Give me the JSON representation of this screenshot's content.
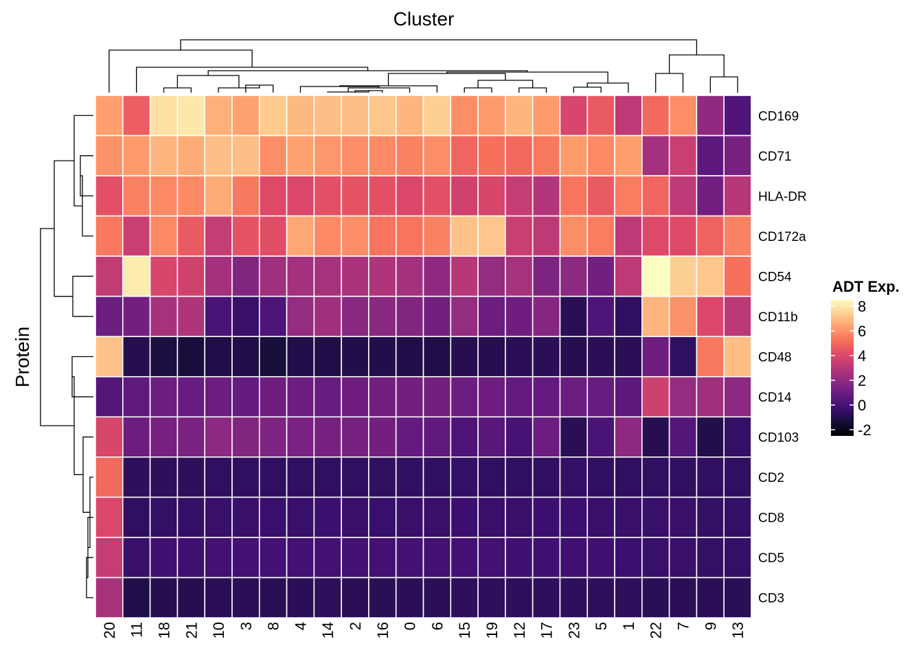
{
  "chart_data": {
    "type": "heatmap",
    "title": "Cluster",
    "xlabel": "Cluster",
    "ylabel": "Protein",
    "columns": [
      "20",
      "11",
      "18",
      "21",
      "10",
      "3",
      "8",
      "4",
      "14",
      "2",
      "16",
      "0",
      "6",
      "15",
      "19",
      "12",
      "17",
      "23",
      "5",
      "1",
      "22",
      "7",
      "9",
      "13"
    ],
    "rows": [
      "CD169",
      "CD71",
      "HLA-DR",
      "CD172a",
      "CD54",
      "CD11b",
      "CD48",
      "CD14",
      "CD103",
      "CD2",
      "CD8",
      "CD5",
      "CD3"
    ],
    "values": [
      [
        6.3,
        4.7,
        7.8,
        8.0,
        6.7,
        6.4,
        7.3,
        6.9,
        7.0,
        7.0,
        7.2,
        6.8,
        7.4,
        5.9,
        6.2,
        6.8,
        6.2,
        3.9,
        4.6,
        3.2,
        5.0,
        5.9,
        2.0,
        0.3
      ],
      [
        6.0,
        6.2,
        6.8,
        6.6,
        7.0,
        7.0,
        5.9,
        6.4,
        6.1,
        5.9,
        5.8,
        5.6,
        5.9,
        4.9,
        5.2,
        5.0,
        5.4,
        6.2,
        5.8,
        6.3,
        2.5,
        3.5,
        0.6,
        1.3
      ],
      [
        4.3,
        5.6,
        5.8,
        5.8,
        6.6,
        5.4,
        4.1,
        4.0,
        4.3,
        4.4,
        4.3,
        4.0,
        4.3,
        3.7,
        3.9,
        3.4,
        2.9,
        5.3,
        4.6,
        5.5,
        4.9,
        3.2,
        1.2,
        3.0
      ],
      [
        5.4,
        3.5,
        5.8,
        4.6,
        3.4,
        4.4,
        4.2,
        6.5,
        5.8,
        5.9,
        5.3,
        5.3,
        5.6,
        7.1,
        7.2,
        3.5,
        3.2,
        5.9,
        5.5,
        3.2,
        4.1,
        4.1,
        4.8,
        5.6
      ],
      [
        3.3,
        8.1,
        3.9,
        3.7,
        2.5,
        1.6,
        2.4,
        2.5,
        2.6,
        2.7,
        2.8,
        2.5,
        2.0,
        3.0,
        2.1,
        2.6,
        1.5,
        1.9,
        1.2,
        3.2,
        8.6,
        7.4,
        7.2,
        5.2
      ],
      [
        1.0,
        1.2,
        2.6,
        2.8,
        0.1,
        -0.4,
        0.2,
        2.1,
        2.4,
        1.8,
        1.8,
        1.6,
        1.2,
        2.1,
        1.0,
        1.1,
        1.7,
        -0.8,
        0.2,
        -0.6,
        6.8,
        6.0,
        4.0,
        3.1
      ],
      [
        7.1,
        -0.9,
        -1.2,
        -1.3,
        -1.1,
        -1.1,
        -1.3,
        -1.1,
        -1.1,
        -1.0,
        -1.0,
        -1.1,
        -1.1,
        -0.9,
        -0.9,
        -0.8,
        -0.8,
        -0.9,
        -0.8,
        -0.8,
        1.1,
        -0.6,
        5.4,
        7.0
      ],
      [
        0.4,
        0.7,
        1.0,
        0.9,
        1.0,
        0.8,
        1.1,
        1.0,
        0.9,
        1.1,
        1.2,
        1.2,
        1.2,
        1.0,
        1.1,
        0.8,
        0.8,
        1.0,
        0.9,
        0.6,
        3.6,
        2.1,
        2.4,
        1.9
      ],
      [
        3.9,
        1.0,
        1.3,
        1.4,
        1.9,
        1.6,
        1.5,
        1.4,
        1.3,
        1.3,
        1.2,
        0.8,
        0.7,
        0.2,
        0.5,
        0.0,
        1.0,
        -0.8,
        0.1,
        1.9,
        -0.9,
        0.4,
        -1.0,
        -0.5
      ],
      [
        5.0,
        -0.7,
        -0.7,
        -0.7,
        -0.6,
        -0.6,
        -0.6,
        -0.6,
        -0.6,
        -0.6,
        -0.6,
        -0.6,
        -0.6,
        -0.5,
        -0.6,
        -0.6,
        -0.6,
        -0.5,
        -0.6,
        -0.6,
        -0.6,
        -0.6,
        -0.6,
        -0.6
      ],
      [
        4.0,
        -0.6,
        -0.5,
        -0.5,
        -0.4,
        -0.4,
        -0.4,
        -0.4,
        -0.3,
        -0.4,
        -0.4,
        -0.4,
        -0.4,
        -0.3,
        -0.4,
        -0.4,
        -0.3,
        -0.3,
        -0.4,
        -0.4,
        -0.4,
        -0.4,
        -0.5,
        -0.5
      ],
      [
        3.4,
        -0.4,
        -0.2,
        -0.2,
        -0.1,
        -0.1,
        -0.1,
        -0.1,
        -0.1,
        -0.1,
        -0.1,
        -0.1,
        -0.1,
        -0.1,
        -0.1,
        -0.2,
        -0.2,
        -0.2,
        -0.2,
        -0.3,
        -0.4,
        -0.4,
        -0.5,
        -0.5
      ],
      [
        2.6,
        -1.1,
        -0.9,
        -0.9,
        -0.8,
        -0.8,
        -0.8,
        -0.8,
        -0.7,
        -0.8,
        -0.8,
        -0.8,
        -0.8,
        -0.7,
        -0.7,
        -0.7,
        -0.7,
        -0.7,
        -0.7,
        -0.7,
        -0.8,
        -0.8,
        -0.8,
        -0.8
      ]
    ],
    "color_scale": {
      "name": "magma",
      "domain": [
        -2.5,
        8.5
      ],
      "stops": [
        "#000004",
        "#150e37",
        "#3b0f70",
        "#641a80",
        "#8c2981",
        "#b73779",
        "#de4968",
        "#f7705c",
        "#fe9f6d",
        "#fecf92",
        "#fcfdbf"
      ]
    },
    "legend": {
      "title": "ADT Exp.",
      "ticks": [
        8,
        6,
        4,
        2,
        0,
        -2
      ],
      "tick_labels": [
        "8",
        "6",
        "4",
        "2",
        "0",
        "-2"
      ],
      "position": "right"
    },
    "dendrogram_columns": true,
    "dendrogram_rows": true
  }
}
